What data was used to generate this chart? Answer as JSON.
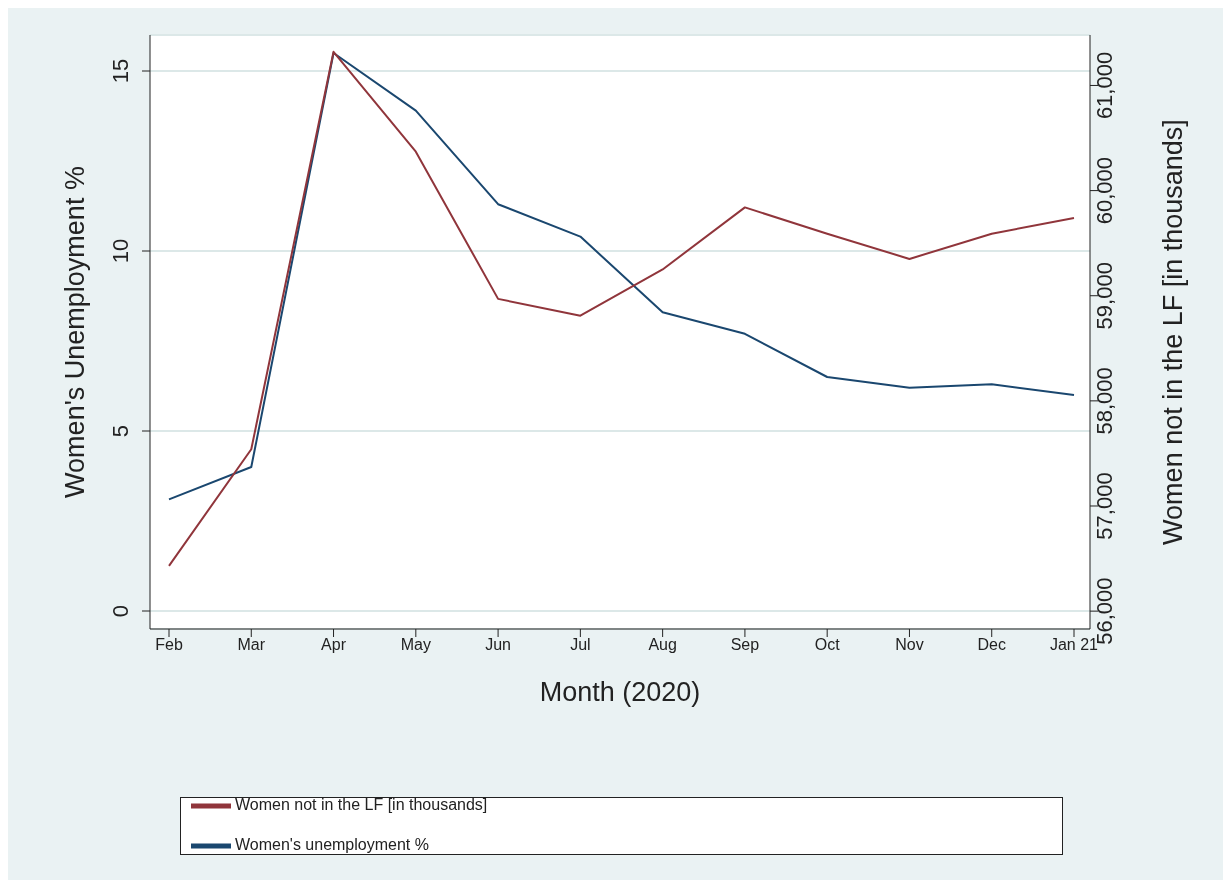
{
  "chart_data": {
    "type": "line",
    "xlabel": "Month (2020)",
    "ylabel": "Women's Unemployment %",
    "y2label": "Women not in the LF [in thousands]",
    "categories": [
      "Feb",
      "Mar",
      "Apr",
      "May",
      "Jun",
      "Jul",
      "Aug",
      "Sep",
      "Oct",
      "Nov",
      "Dec",
      "Jan 21"
    ],
    "series": [
      {
        "name": "Women's unemployment %",
        "color": "#1a476f",
        "values": [
          3.1,
          4.0,
          15.5,
          13.9,
          11.3,
          10.4,
          8.3,
          7.7,
          6.5,
          6.2,
          6.3,
          6.0
        ]
      },
      {
        "name": "Women not in the LF [in thousands]",
        "color": "#90353b",
        "axis": "y2",
        "values": [
          56430,
          57540,
          61320,
          60370,
          58970,
          58810,
          59250,
          59840,
          59590,
          59350,
          59590,
          59740
        ]
      }
    ],
    "ylim": [
      -0.5,
      16
    ],
    "yticks": [
      0,
      5,
      10,
      15
    ],
    "y2lim": [
      55830,
      61480
    ],
    "y2ticks": [
      {
        "value": 56000,
        "label": "56,000"
      },
      {
        "value": 57000,
        "label": "57,000"
      },
      {
        "value": 58000,
        "label": "58,000"
      },
      {
        "value": 59000,
        "label": "59,000"
      },
      {
        "value": 60000,
        "label": "60,000"
      },
      {
        "value": 61000,
        "label": "61,000"
      }
    ],
    "grid": "y",
    "legend": "bottom",
    "marker": "none",
    "line_style": "solid"
  }
}
